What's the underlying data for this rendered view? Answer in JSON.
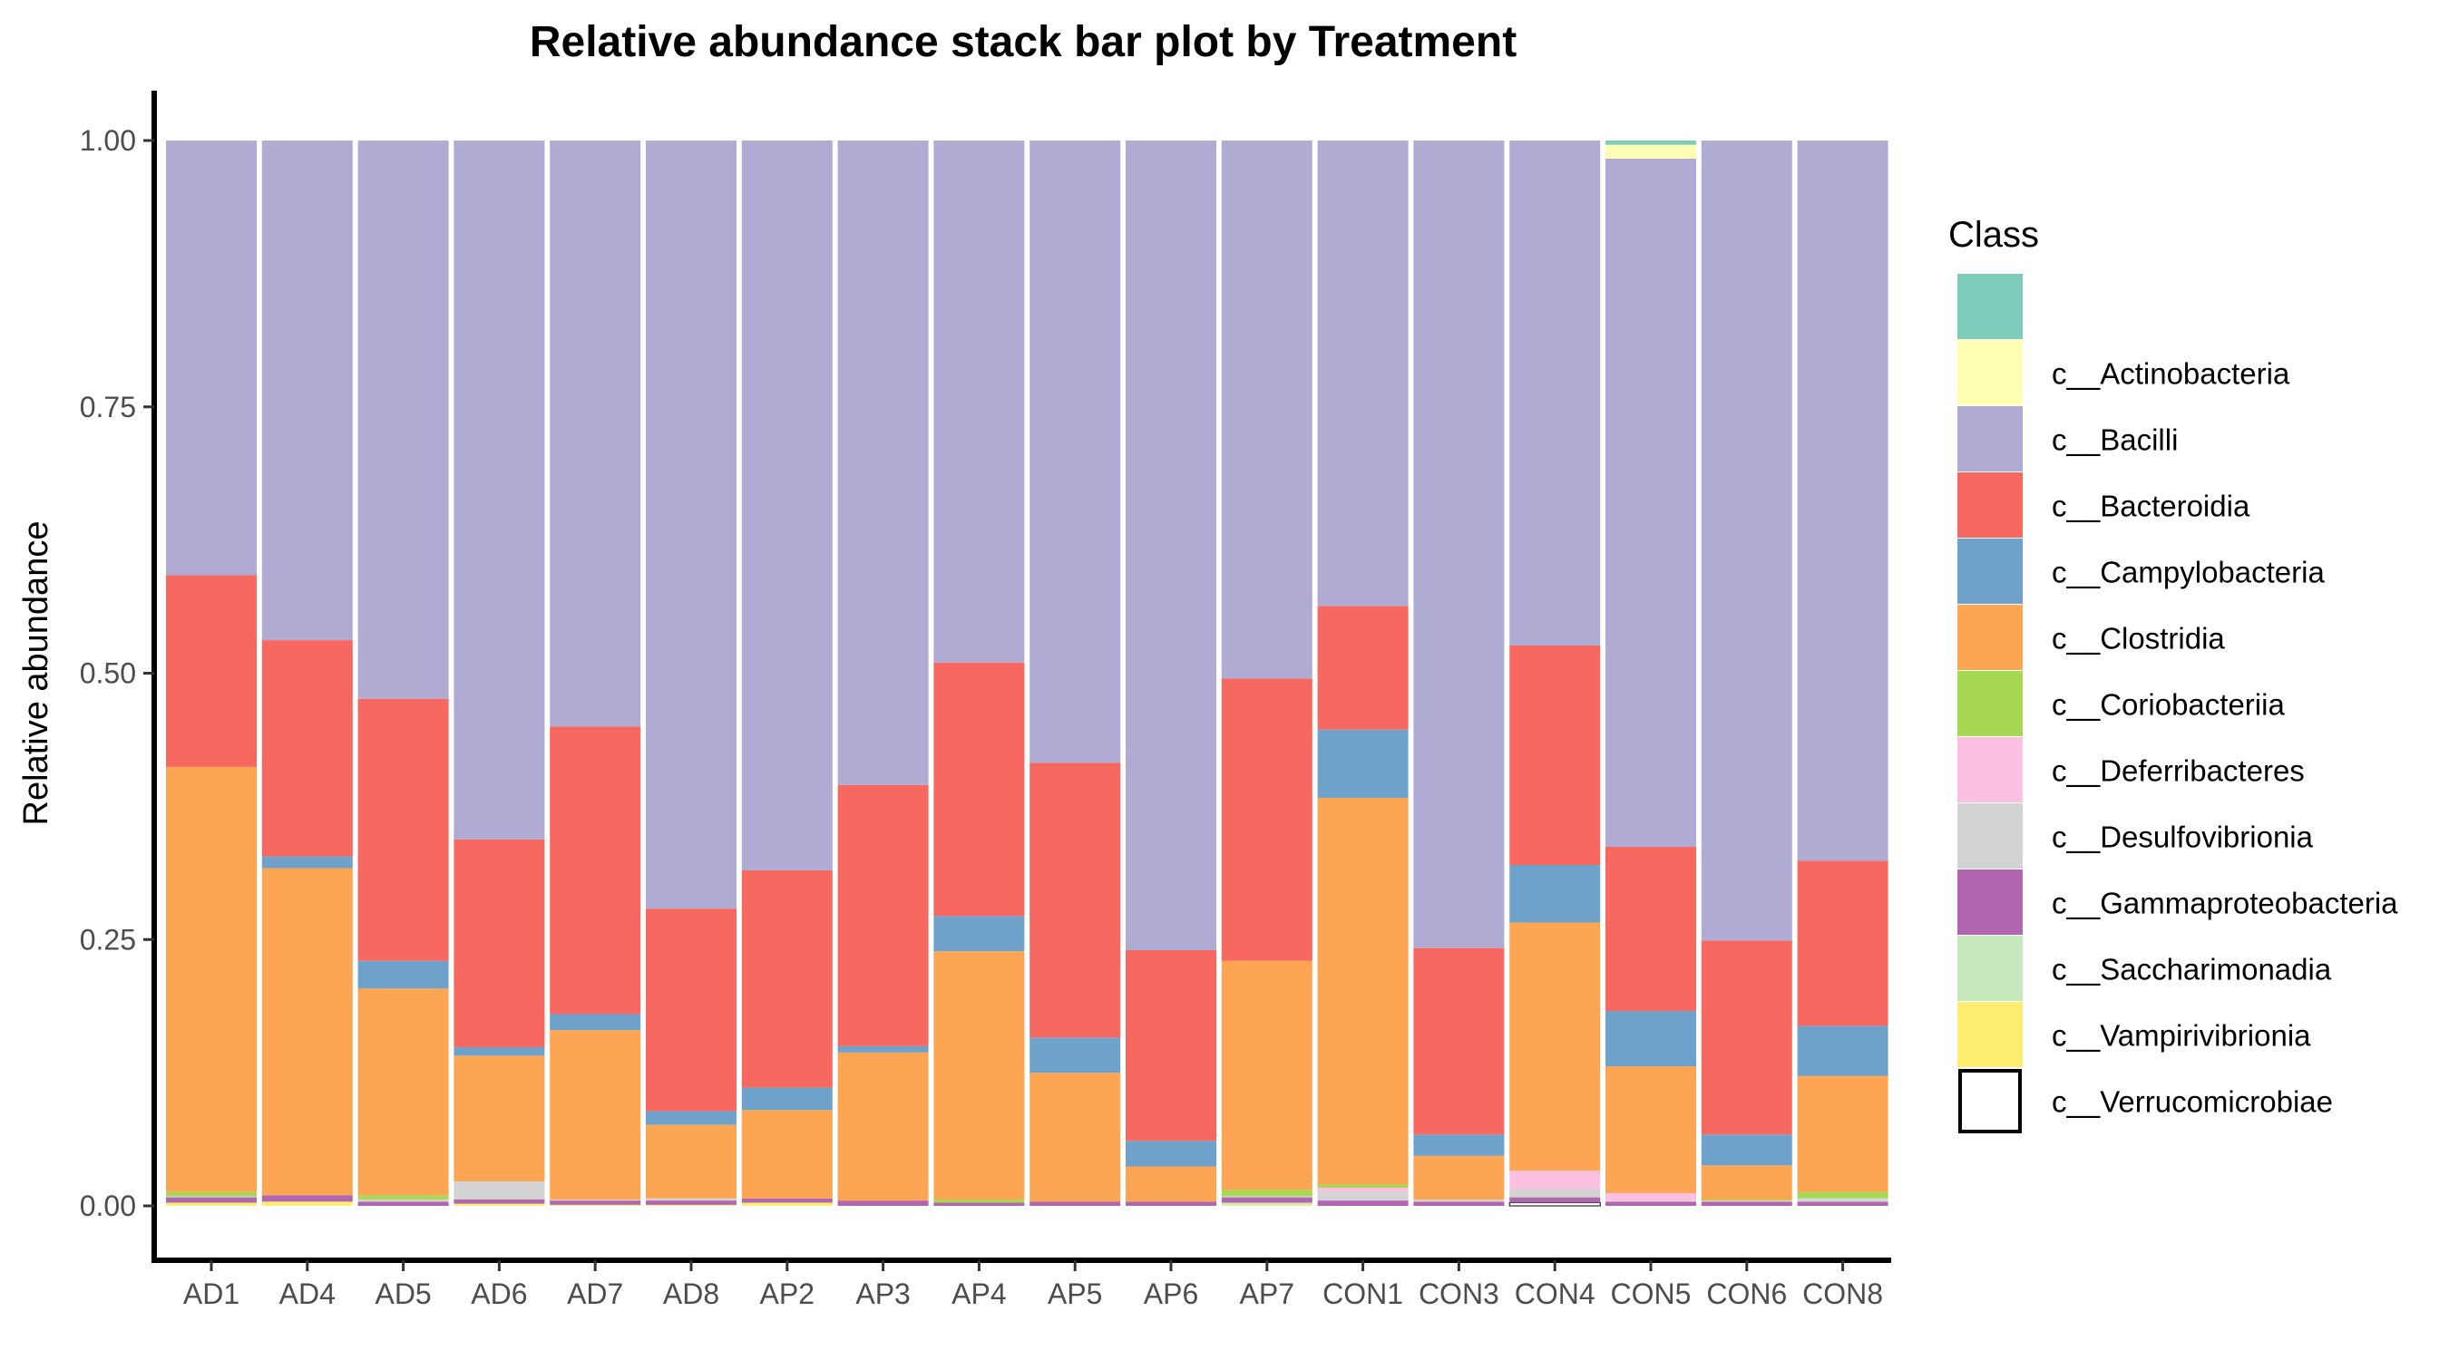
{
  "chart_data": {
    "type": "bar",
    "stacked": true,
    "title": "Relative abundance stack bar plot by Treatment",
    "xlabel": "",
    "ylabel": "Relative abundance",
    "ylim": [
      0,
      1
    ],
    "yticks": [
      "0.00",
      "0.25",
      "0.50",
      "0.75",
      "1.00"
    ],
    "grid": false,
    "legend_position": "right",
    "legend_title": "Class",
    "categories": [
      "AD1",
      "AD4",
      "AD5",
      "AD6",
      "AD7",
      "AD8",
      "AP2",
      "AP3",
      "AP4",
      "AP5",
      "AP6",
      "AP7",
      "CON1",
      "CON3",
      "CON4",
      "CON5",
      "CON6",
      "CON8"
    ],
    "series": [
      {
        "name": "c__Verrucomicrobiae",
        "color": "#ffffff",
        "values": [
          0,
          0,
          0,
          0,
          0,
          0,
          0,
          0,
          0,
          0,
          0,
          0,
          0,
          0,
          0.003,
          0,
          0,
          0
        ]
      },
      {
        "name": "c__Vampirivibrionia",
        "color": "#ffed6f",
        "values": [
          0.003,
          0.004,
          0,
          0.002,
          0.001,
          0.001,
          0.003,
          0,
          0,
          0,
          0,
          0.001,
          0,
          0,
          0,
          0,
          0,
          0
        ]
      },
      {
        "name": "c__Saccharimonadia",
        "color": "#c7e9c0",
        "values": [
          0,
          0,
          0,
          0,
          0,
          0,
          0,
          0,
          0,
          0,
          0,
          0.002,
          0,
          0,
          0,
          0,
          0,
          0
        ]
      },
      {
        "name": "c__Gammaproteobacteria",
        "color": "#b067b0",
        "values": [
          0.005,
          0.006,
          0.004,
          0.004,
          0.004,
          0.004,
          0.004,
          0.005,
          0.003,
          0.004,
          0.004,
          0.005,
          0.005,
          0.004,
          0.005,
          0.004,
          0.004,
          0.004
        ]
      },
      {
        "name": "c__Desulfovibrionia",
        "color": "#d3d3d3",
        "values": [
          0.001,
          0,
          0.002,
          0.017,
          0.001,
          0.002,
          0,
          0,
          0,
          0,
          0,
          0.001,
          0.008,
          0.002,
          0.008,
          0.001,
          0.001,
          0.003
        ]
      },
      {
        "name": "c__Deferribacteres",
        "color": "#fbc0df",
        "values": [
          0,
          0,
          0,
          0,
          0,
          0,
          0,
          0,
          0,
          0,
          0,
          0,
          0.004,
          0,
          0.017,
          0.007,
          0,
          0
        ]
      },
      {
        "name": "c__Coriobacteriia",
        "color": "#a6d854",
        "values": [
          0.004,
          0,
          0.004,
          0,
          0,
          0,
          0,
          0,
          0.003,
          0,
          0,
          0.006,
          0.003,
          0,
          0,
          0,
          0.001,
          0.006
        ]
      },
      {
        "name": "c__Clostridia",
        "color": "#fca553",
        "values": [
          0.399,
          0.307,
          0.194,
          0.118,
          0.159,
          0.069,
          0.083,
          0.139,
          0.233,
          0.121,
          0.033,
          0.215,
          0.363,
          0.041,
          0.233,
          0.119,
          0.032,
          0.109
        ]
      },
      {
        "name": "c__Campylobacteria",
        "color": "#6fa2cb",
        "values": [
          0,
          0.011,
          0.026,
          0.008,
          0.015,
          0.013,
          0.021,
          0.006,
          0.033,
          0.033,
          0.024,
          0,
          0.064,
          0.02,
          0.054,
          0.052,
          0.029,
          0.047
        ]
      },
      {
        "name": "c__Bacteroidia",
        "color": "#f76860",
        "values": [
          0.18,
          0.203,
          0.246,
          0.195,
          0.27,
          0.19,
          0.204,
          0.245,
          0.238,
          0.258,
          0.179,
          0.265,
          0.116,
          0.175,
          0.206,
          0.154,
          0.182,
          0.155
        ]
      },
      {
        "name": "c__Bacilli",
        "color": "#b0abd3",
        "values": [
          0.408,
          0.469,
          0.524,
          0.656,
          0.55,
          0.721,
          0.685,
          0.605,
          0.49,
          0.584,
          0.76,
          0.505,
          0.437,
          0.758,
          0.474,
          0.646,
          0.751,
          0.676
        ]
      },
      {
        "name": "c__Actinobacteria",
        "color": "#ffffb3",
        "values": [
          0,
          0,
          0,
          0,
          0,
          0,
          0,
          0,
          0,
          0,
          0,
          0,
          0,
          0,
          0,
          0.013,
          0,
          0
        ]
      },
      {
        "name": "",
        "color": "#7ecdbb",
        "values": [
          0,
          0,
          0,
          0,
          0,
          0,
          0,
          0,
          0,
          0,
          0,
          0,
          0,
          0,
          0,
          0.004,
          0,
          0
        ]
      }
    ],
    "legend_entries": [
      {
        "label": "",
        "color": "#7ecdbb"
      },
      {
        "label": "c__Actinobacteria",
        "color": "#ffffb3"
      },
      {
        "label": "c__Bacilli",
        "color": "#b0abd3"
      },
      {
        "label": "c__Bacteroidia",
        "color": "#f76860"
      },
      {
        "label": "c__Campylobacteria",
        "color": "#6fa2cb"
      },
      {
        "label": "c__Clostridia",
        "color": "#fca553"
      },
      {
        "label": "c__Coriobacteriia",
        "color": "#a6d854"
      },
      {
        "label": "c__Deferribacteres",
        "color": "#fbc0df"
      },
      {
        "label": "c__Desulfovibrionia",
        "color": "#d3d3d3"
      },
      {
        "label": "c__Gammaproteobacteria",
        "color": "#b067b0"
      },
      {
        "label": "c__Saccharimonadia",
        "color": "#c7e9c0"
      },
      {
        "label": "c__Vampirivibrionia",
        "color": "#ffed6f"
      },
      {
        "label": "c__Verrucomicrobiae",
        "color": "#ffffff"
      }
    ]
  }
}
